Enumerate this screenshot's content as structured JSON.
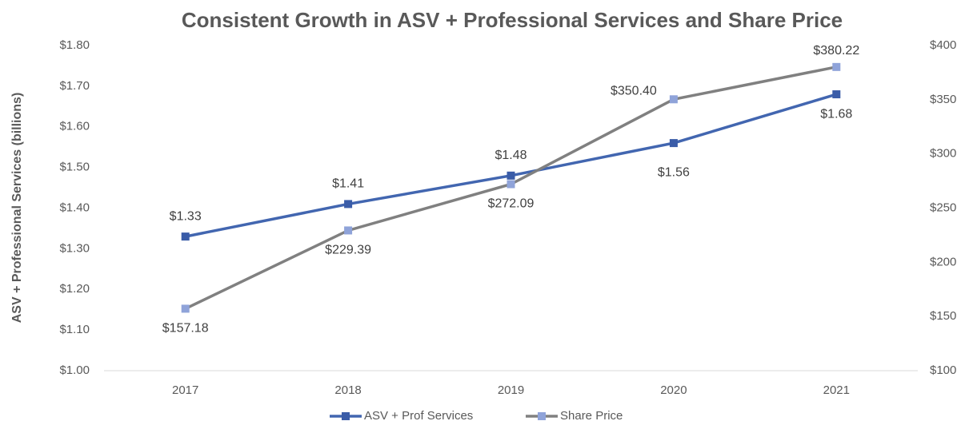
{
  "chart_data": {
    "type": "line",
    "title": "Consistent Growth in ASV + Professional Services and Share Price",
    "ylabel": "ASV + Professional  Services (billions)",
    "categories": [
      "2017",
      "2018",
      "2019",
      "2020",
      "2021"
    ],
    "series": [
      {
        "name": "ASV + Prof Services",
        "color": "#4266b0",
        "marker_color": "#3a5ca8",
        "values": [
          1.33,
          1.41,
          1.48,
          1.56,
          1.68
        ],
        "value_labels": [
          "$1.33",
          "$1.41",
          "$1.48",
          "$1.56",
          "$1.68"
        ]
      },
      {
        "name": "Share Price",
        "color": "#808080",
        "marker_color": "#8fa3d9",
        "axis": "y2",
        "values": [
          157.18,
          229.39,
          272.09,
          350.4,
          380.22
        ],
        "value_labels": [
          "$157.18",
          "$229.39",
          "$272.09",
          "$350.40",
          "$380.22"
        ]
      }
    ],
    "ylim": [
      1.0,
      1.8
    ],
    "yticks": [
      {
        "value": 1.0,
        "label": "$1.00"
      },
      {
        "value": 1.1,
        "label": "$1.10"
      },
      {
        "value": 1.2,
        "label": "$1.20"
      },
      {
        "value": 1.3,
        "label": "$1.30"
      },
      {
        "value": 1.4,
        "label": "$1.40"
      },
      {
        "value": 1.5,
        "label": "$1.50"
      },
      {
        "value": 1.6,
        "label": "$1.60"
      },
      {
        "value": 1.7,
        "label": "$1.70"
      },
      {
        "value": 1.8,
        "label": "$1.80"
      }
    ],
    "y2lim": [
      100,
      400
    ],
    "y2ticks": [
      {
        "value": 100,
        "label": "$100"
      },
      {
        "value": 150,
        "label": "$150"
      },
      {
        "value": 200,
        "label": "$200"
      },
      {
        "value": 250,
        "label": "$250"
      },
      {
        "value": 300,
        "label": "$300"
      },
      {
        "value": 350,
        "label": "$350"
      },
      {
        "value": 400,
        "label": "$400"
      }
    ],
    "grid": false,
    "legend": "bottom"
  }
}
